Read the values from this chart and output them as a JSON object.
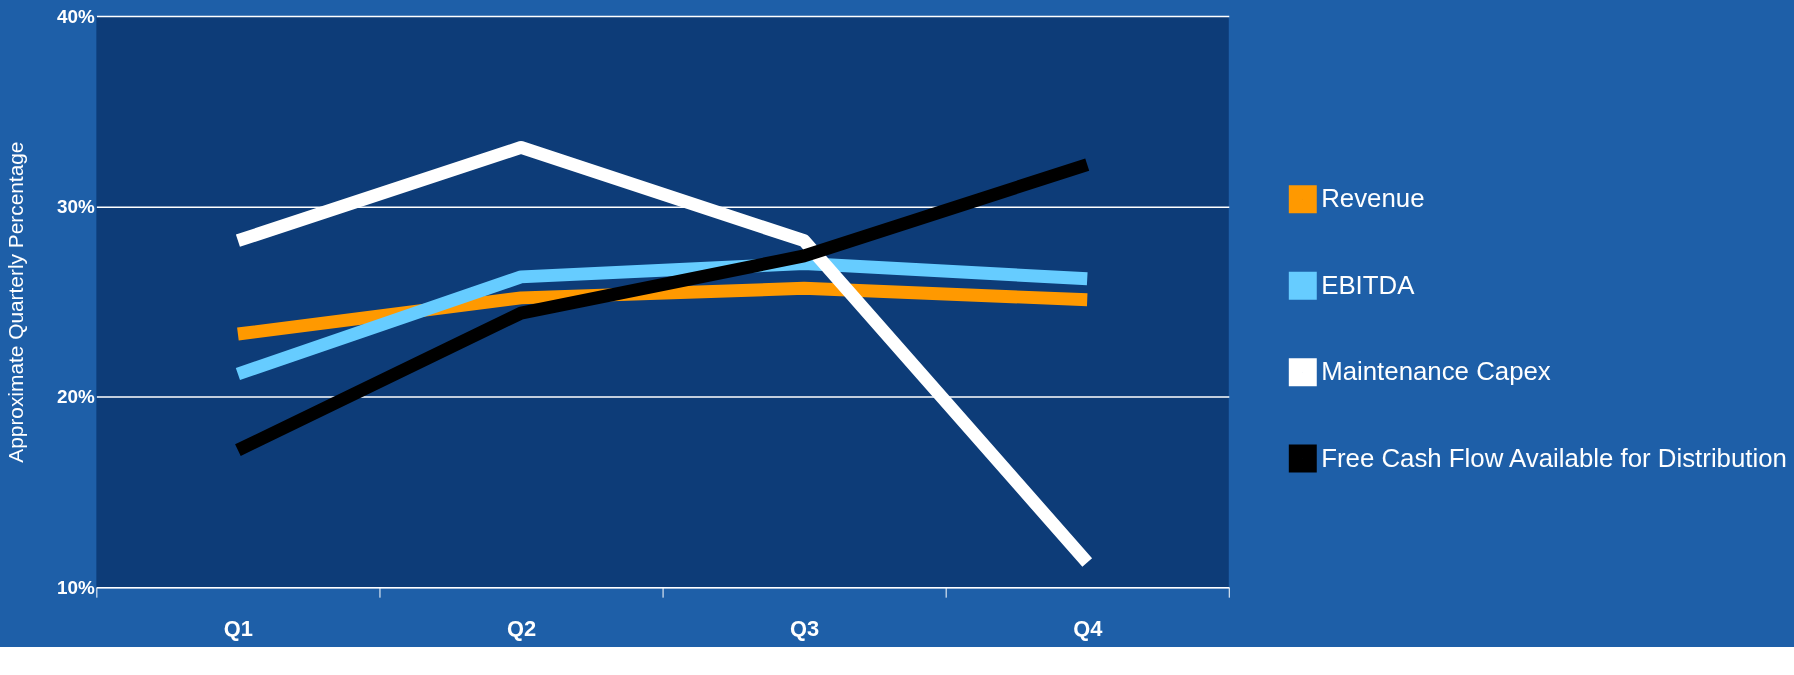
{
  "chart_data": {
    "type": "line",
    "ylabel": "Approximate Quarterly Percentage",
    "categories": [
      "Q1",
      "Q2",
      "Q3",
      "Q4"
    ],
    "series": [
      {
        "name": "Revenue",
        "color": "#ff9900",
        "values": [
          23.3,
          25.2,
          25.7,
          25.1
        ]
      },
      {
        "name": "EBITDA",
        "color": "#66ccff",
        "values": [
          21.2,
          26.3,
          27.0,
          26.2
        ]
      },
      {
        "name": "Maintenance Capex",
        "color": "#ffffff",
        "values": [
          28.2,
          33.1,
          28.2,
          11.3
        ]
      },
      {
        "name": "Free Cash Flow Available for Distribution",
        "color": "#000000",
        "values": [
          17.2,
          24.4,
          27.4,
          32.2
        ]
      }
    ],
    "ylim": [
      10,
      40
    ],
    "yticks": [
      {
        "value": 10,
        "label": "10%"
      },
      {
        "value": 20,
        "label": "20%"
      },
      {
        "value": 30,
        "label": "30%"
      },
      {
        "value": 40,
        "label": "40%"
      }
    ],
    "grid": "y",
    "legend": "right",
    "marker": "none",
    "line_style": "solid"
  }
}
